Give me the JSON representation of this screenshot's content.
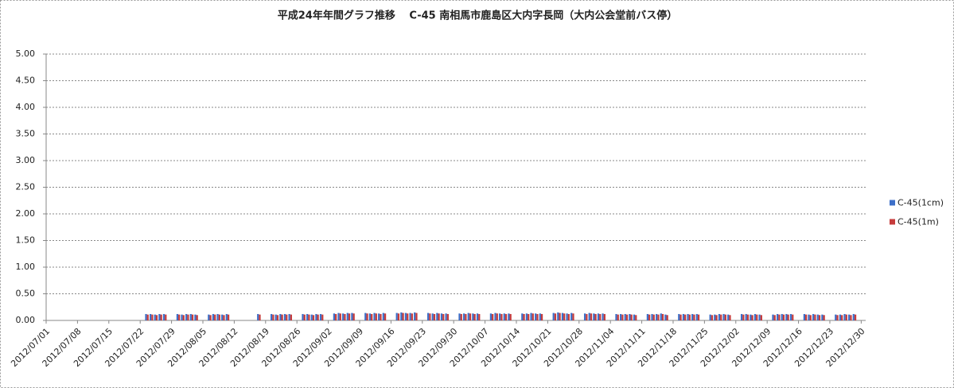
{
  "chart_data": {
    "type": "bar",
    "title": "平成24年年間グラフ推移　 C-45 南相馬市鹿島区大内字長岡（大内公会堂前バス停）",
    "categories": [
      "2012/07/01",
      null,
      null,
      null,
      null,
      null,
      null,
      "2012/07/08",
      null,
      null,
      null,
      null,
      null,
      null,
      "2012/07/15",
      null,
      null,
      null,
      null,
      null,
      null,
      "2012/07/22",
      null,
      null,
      null,
      null,
      null,
      null,
      "2012/07/29",
      null,
      null,
      null,
      null,
      null,
      null,
      "2012/08/05",
      null,
      null,
      null,
      null,
      null,
      null,
      "2012/08/12",
      null,
      null,
      null,
      null,
      null,
      null,
      "2012/08/19",
      null,
      null,
      null,
      null,
      null,
      null,
      "2012/08/26",
      null,
      null,
      null,
      null,
      null,
      null,
      "2012/09/02",
      null,
      null,
      null,
      null,
      null,
      null,
      "2012/09/09",
      null,
      null,
      null,
      null,
      null,
      null,
      "2012/09/16",
      null,
      null,
      null,
      null,
      null,
      null,
      "2012/09/23",
      null,
      null,
      null,
      null,
      null,
      null,
      "2012/09/30",
      null,
      null,
      null,
      null,
      null,
      null,
      "2012/10/07",
      null,
      null,
      null,
      null,
      null,
      null,
      "2012/10/14",
      null,
      null,
      null,
      null,
      null,
      null,
      "2012/10/21",
      null,
      null,
      null,
      null,
      null,
      null,
      "2012/10/28",
      null,
      null,
      null,
      null,
      null,
      null,
      "2012/11/04",
      null,
      null,
      null,
      null,
      null,
      null,
      "2012/11/11",
      null,
      null,
      null,
      null,
      null,
      null,
      "2012/11/18",
      null,
      null,
      null,
      null,
      null,
      null,
      "2012/11/25",
      null,
      null,
      null,
      null,
      null,
      null,
      "2012/12/02",
      null,
      null,
      null,
      null,
      null,
      null,
      "2012/12/09",
      null,
      null,
      null,
      null,
      null,
      null,
      "2012/12/16",
      null,
      null,
      null,
      null,
      null,
      null,
      "2012/12/23",
      null,
      null,
      null,
      null,
      null,
      null,
      "2012/12/30"
    ],
    "series": [
      {
        "name": "C-45(1cm)",
        "color": "#3d6fc8",
        "values": [
          null,
          null,
          null,
          null,
          null,
          null,
          null,
          null,
          null,
          null,
          null,
          null,
          null,
          null,
          null,
          null,
          null,
          null,
          null,
          null,
          null,
          null,
          0.12,
          0.12,
          0.11,
          0.12,
          0.12,
          null,
          null,
          0.12,
          0.11,
          0.12,
          0.12,
          0.11,
          null,
          null,
          0.11,
          0.12,
          0.12,
          0.11,
          0.12,
          null,
          null,
          null,
          null,
          null,
          null,
          0.12,
          null,
          null,
          0.12,
          0.11,
          0.12,
          0.12,
          0.12,
          null,
          null,
          0.12,
          0.12,
          0.11,
          0.12,
          0.12,
          null,
          null,
          0.13,
          0.14,
          0.13,
          0.14,
          0.14,
          null,
          null,
          0.14,
          0.13,
          0.14,
          0.13,
          0.14,
          null,
          null,
          0.14,
          0.15,
          0.14,
          0.14,
          0.15,
          null,
          null,
          0.14,
          0.13,
          0.14,
          0.13,
          0.13,
          null,
          null,
          0.13,
          0.13,
          0.14,
          0.13,
          0.13,
          null,
          null,
          0.13,
          0.14,
          0.13,
          0.13,
          0.13,
          null,
          null,
          0.13,
          0.13,
          0.14,
          0.13,
          0.13,
          null,
          null,
          0.14,
          0.15,
          0.14,
          0.13,
          0.14,
          null,
          null,
          0.13,
          0.14,
          0.13,
          0.13,
          0.13,
          null,
          null,
          0.12,
          0.12,
          0.12,
          0.12,
          0.11,
          null,
          null,
          0.12,
          0.12,
          0.12,
          0.13,
          0.11,
          null,
          null,
          0.12,
          0.12,
          0.12,
          0.12,
          0.12,
          null,
          null,
          0.11,
          0.11,
          0.12,
          0.12,
          0.11,
          null,
          null,
          0.12,
          0.12,
          0.11,
          0.12,
          0.11,
          null,
          null,
          0.11,
          0.12,
          0.12,
          0.12,
          0.12,
          null,
          null,
          0.12,
          0.11,
          0.12,
          0.11,
          0.11,
          null,
          null,
          0.11,
          0.11,
          0.12,
          0.11,
          0.12,
          null,
          null
        ]
      },
      {
        "name": "C-45(1m)",
        "color": "#c63c3c",
        "values": [
          null,
          null,
          null,
          null,
          null,
          null,
          null,
          null,
          null,
          null,
          null,
          null,
          null,
          null,
          null,
          null,
          null,
          null,
          null,
          null,
          null,
          null,
          0.11,
          0.11,
          0.1,
          0.11,
          0.11,
          null,
          null,
          0.11,
          0.1,
          0.11,
          0.11,
          0.1,
          null,
          null,
          0.1,
          0.11,
          0.11,
          0.1,
          0.11,
          null,
          null,
          null,
          null,
          null,
          null,
          0.11,
          null,
          null,
          0.11,
          0.1,
          0.11,
          0.11,
          0.11,
          null,
          null,
          0.11,
          0.11,
          0.1,
          0.11,
          0.11,
          null,
          null,
          0.12,
          0.13,
          0.12,
          0.13,
          0.13,
          null,
          null,
          0.13,
          0.12,
          0.13,
          0.12,
          0.13,
          null,
          null,
          0.13,
          0.14,
          0.13,
          0.13,
          0.14,
          null,
          null,
          0.13,
          0.12,
          0.13,
          0.12,
          0.12,
          null,
          null,
          0.12,
          0.12,
          0.13,
          0.12,
          0.12,
          null,
          null,
          0.12,
          0.13,
          0.12,
          0.12,
          0.12,
          null,
          null,
          0.12,
          0.12,
          0.13,
          0.12,
          0.12,
          null,
          null,
          0.13,
          0.14,
          0.13,
          0.12,
          0.13,
          null,
          null,
          0.12,
          0.13,
          0.12,
          0.12,
          0.12,
          null,
          null,
          0.11,
          0.11,
          0.11,
          0.11,
          0.1,
          null,
          null,
          0.11,
          0.11,
          0.11,
          0.12,
          0.1,
          null,
          null,
          0.11,
          0.11,
          0.11,
          0.11,
          0.11,
          null,
          null,
          0.1,
          0.1,
          0.11,
          0.11,
          0.1,
          null,
          null,
          0.11,
          0.11,
          0.1,
          0.11,
          0.1,
          null,
          null,
          0.1,
          0.11,
          0.11,
          0.11,
          0.11,
          null,
          null,
          0.11,
          0.1,
          0.11,
          0.1,
          0.1,
          null,
          null,
          0.1,
          0.1,
          0.11,
          0.1,
          0.11,
          null,
          null
        ]
      }
    ],
    "ylim": [
      0,
      5
    ],
    "yticks": [
      {
        "value": 0,
        "label": "0.00"
      },
      {
        "value": 0.5,
        "label": "0.50"
      },
      {
        "value": 1,
        "label": "1.00"
      },
      {
        "value": 1.5,
        "label": "1.50"
      },
      {
        "value": 2,
        "label": "2.00"
      },
      {
        "value": 2.5,
        "label": "2.50"
      },
      {
        "value": 3,
        "label": "3.00"
      },
      {
        "value": 3.5,
        "label": "3.50"
      },
      {
        "value": 4,
        "label": "4.00"
      },
      {
        "value": 4.5,
        "label": "4.50"
      },
      {
        "value": 5,
        "label": "5.00"
      }
    ],
    "grid": true,
    "legend": "right"
  }
}
